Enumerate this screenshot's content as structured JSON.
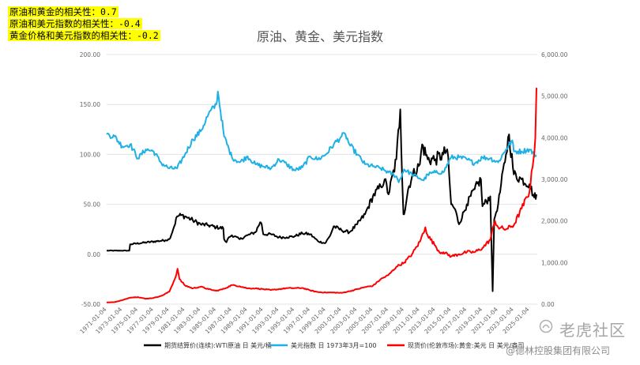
{
  "notes": [
    "原油和黄金的相关性：0.7",
    "原油和美元指数的相关性：-0.4",
    "黄金价格和美元指数的相关性：-0.2"
  ],
  "watermark": {
    "brand": "老虎社区",
    "company": "@德林控股集团有限公司"
  },
  "colors": {
    "oil": "#000000",
    "usd": "#1fb0e6",
    "gold": "#ff0000",
    "note_bg": "#ffff00"
  },
  "chart_data": {
    "type": "line",
    "title": "原油、黄金、美元指数",
    "left_axis": {
      "min": -50,
      "max": 200,
      "ticks": [
        "-50.00",
        "0.00",
        "50.00",
        "100.00",
        "150.00",
        "200.00"
      ]
    },
    "right_axis": {
      "min": 0,
      "max": 6000,
      "ticks": [
        "0.00",
        "1,000.00",
        "2,000.00",
        "3,000.00",
        "4,000.00",
        "5,000.00",
        "6,000.00"
      ]
    },
    "x_axis": {
      "min": 1971.0,
      "max": 2026.0,
      "ticks": [
        "1971-01-04",
        "1973-01-04",
        "1975-01-04",
        "1977-01-04",
        "1979-01-04",
        "1981-01-04",
        "1983-01-04",
        "1985-01-04",
        "1987-01-04",
        "1989-01-04",
        "1991-01-04",
        "1993-01-04",
        "1995-01-04",
        "1997-01-04",
        "1999-01-04",
        "2001-01-04",
        "2003-01-04",
        "2005-01-04",
        "2007-01-04",
        "2009-01-04",
        "2011-01-04",
        "2013-01-04",
        "2015-01-04",
        "2017-01-04",
        "2019-01-04",
        "2021-01-04",
        "2023-01-04",
        "2025-01-04"
      ]
    },
    "grid": true,
    "legend_position": "bottom",
    "series": [
      {
        "name": "期货结算价(连续):WTI原油 日 美元/桶",
        "axis": "left",
        "color": "#000000",
        "x": [
          1971.0,
          1973.9,
          1974.0,
          1978.5,
          1979.0,
          1979.5,
          1980.0,
          1980.5,
          1981.0,
          1982.0,
          1983.0,
          1984.0,
          1985.0,
          1985.9,
          1986.0,
          1986.3,
          1986.6,
          1987.0,
          1988.0,
          1989.0,
          1990.0,
          1990.6,
          1990.8,
          1991.0,
          1992.0,
          1993.0,
          1994.0,
          1995.0,
          1996.0,
          1997.0,
          1998.0,
          1998.9,
          1999.5,
          2000.0,
          2001.0,
          2002.0,
          2003.0,
          2004.0,
          2005.0,
          2006.0,
          2006.5,
          2007.0,
          2008.0,
          2008.5,
          2008.9,
          2009.0,
          2009.5,
          2010.0,
          2011.0,
          2011.3,
          2012.0,
          2013.0,
          2014.0,
          2014.5,
          2015.0,
          2015.5,
          2016.0,
          2017.0,
          2018.0,
          2018.8,
          2019.0,
          2020.0,
          2020.3,
          2020.5,
          2021.0,
          2022.0,
          2022.4,
          2023.0,
          2024.0,
          2025.0,
          2025.6,
          2025.9
        ],
        "values": [
          3.6,
          3.6,
          10,
          14,
          15,
          25,
          38,
          39,
          38,
          34,
          30,
          29,
          27,
          26,
          15,
          12,
          17,
          19,
          15,
          19,
          22,
          32,
          30,
          20,
          20,
          17,
          17,
          18,
          21,
          20,
          13,
          11,
          18,
          28,
          24,
          22,
          30,
          40,
          58,
          68,
          75,
          60,
          95,
          145,
          40,
          40,
          65,
          78,
          90,
          110,
          95,
          95,
          100,
          105,
          50,
          45,
          30,
          50,
          65,
          75,
          48,
          58,
          -37,
          35,
          50,
          100,
          120,
          80,
          75,
          70,
          57,
          60
        ]
      },
      {
        "name": "美元指数 日 1973年3月=100",
        "axis": "left",
        "color": "#1fb0e6",
        "x": [
          1971.0,
          1972.0,
          1973.0,
          1974.0,
          1975.0,
          1976.0,
          1977.0,
          1978.0,
          1979.0,
          1980.0,
          1981.0,
          1982.0,
          1983.0,
          1984.0,
          1985.0,
          1985.2,
          1986.0,
          1987.0,
          1988.0,
          1989.0,
          1990.0,
          1991.0,
          1992.0,
          1993.0,
          1994.0,
          1995.0,
          1996.0,
          1997.0,
          1998.0,
          1999.0,
          2000.0,
          2001.0,
          2001.5,
          2002.0,
          2003.0,
          2004.0,
          2005.0,
          2006.0,
          2007.0,
          2008.0,
          2008.3,
          2009.0,
          2010.0,
          2011.0,
          2011.5,
          2012.0,
          2013.0,
          2014.0,
          2015.0,
          2016.0,
          2017.0,
          2018.0,
          2019.0,
          2020.0,
          2021.0,
          2022.0,
          2022.8,
          2023.0,
          2024.0,
          2025.0,
          2025.9
        ],
        "values": [
          120,
          118,
          108,
          110,
          96,
          105,
          103,
          91,
          86,
          86,
          100,
          115,
          123,
          140,
          150,
          163,
          118,
          97,
          92,
          98,
          90,
          88,
          86,
          95,
          90,
          84,
          87,
          98,
          95,
          100,
          110,
          118,
          120,
          110,
          100,
          90,
          88,
          86,
          82,
          78,
          72,
          85,
          80,
          76,
          74,
          80,
          82,
          82,
          97,
          97,
          95,
          91,
          97,
          96,
          92,
          105,
          114,
          103,
          103,
          105,
          98
        ]
      },
      {
        "name": "现货价(伦敦市场):黄金:美元 日 美元/盎司",
        "axis": "right",
        "color": "#ff0000",
        "x": [
          1971.0,
          1972.0,
          1973.0,
          1974.0,
          1975.0,
          1976.0,
          1977.0,
          1978.0,
          1979.0,
          1979.8,
          1980.05,
          1980.3,
          1981.0,
          1982.0,
          1983.0,
          1984.0,
          1985.0,
          1986.0,
          1987.0,
          1988.0,
          1989.0,
          1990.0,
          1991.0,
          1992.0,
          1993.0,
          1994.0,
          1995.0,
          1996.0,
          1997.0,
          1998.0,
          1999.0,
          2000.0,
          2001.0,
          2002.0,
          2003.0,
          2004.0,
          2005.0,
          2006.0,
          2007.0,
          2008.0,
          2009.0,
          2010.0,
          2011.0,
          2011.7,
          2012.0,
          2013.0,
          2013.5,
          2014.0,
          2015.0,
          2016.0,
          2017.0,
          2018.0,
          2019.0,
          2020.0,
          2020.6,
          2021.0,
          2022.0,
          2023.0,
          2024.0,
          2025.0,
          2025.4,
          2025.75,
          2025.9
        ],
        "values": [
          40,
          50,
          95,
          160,
          170,
          130,
          150,
          200,
          300,
          650,
          850,
          600,
          450,
          380,
          420,
          360,
          320,
          370,
          460,
          430,
          380,
          380,
          360,
          340,
          360,
          385,
          385,
          390,
          330,
          290,
          280,
          280,
          270,
          310,
          360,
          410,
          440,
          600,
          700,
          900,
          1000,
          1200,
          1500,
          1850,
          1650,
          1400,
          1250,
          1250,
          1150,
          1200,
          1250,
          1250,
          1350,
          1550,
          2000,
          1850,
          1800,
          1900,
          2300,
          2700,
          3300,
          4000,
          5200
        ]
      }
    ]
  }
}
